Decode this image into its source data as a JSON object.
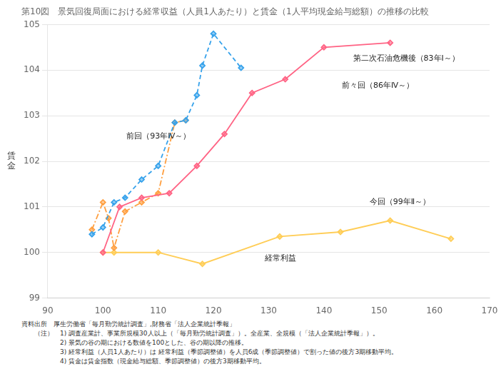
{
  "chart_data": {
    "type": "line",
    "title": "第10図　景気回復局面における経常収益（人員1人あたり）と賃金（1人平均現金給与総額）の推移の比較",
    "y_label": "賃\n金",
    "xlim": [
      90,
      170
    ],
    "ylim": [
      99,
      105
    ],
    "xticks": [
      90,
      100,
      110,
      120,
      130,
      140,
      150,
      160,
      170
    ],
    "yticks": [
      99,
      100,
      101,
      102,
      103,
      104,
      105
    ],
    "grid": "y",
    "series": [
      {
        "name": "第二次石油危機後（83年Ⅰ～）",
        "line_style": "dashed",
        "marker": "diamond",
        "x": [
          98,
          100,
          102,
          104,
          107,
          110,
          113,
          115,
          117,
          118,
          120,
          125
        ],
        "values": [
          100.4,
          100.55,
          101.1,
          101.2,
          101.6,
          101.9,
          102.85,
          102.9,
          103.45,
          104.1,
          104.8,
          104.05
        ]
      },
      {
        "name": "前々回（86年Ⅳ～）",
        "line_style": "solid",
        "marker": "diamond",
        "x": [
          100,
          103,
          107,
          112,
          117,
          122,
          127,
          133,
          140,
          152
        ],
        "values": [
          100.0,
          101.0,
          101.2,
          101.3,
          101.9,
          102.6,
          103.5,
          103.8,
          104.5,
          104.6
        ]
      },
      {
        "name": "前回（93年Ⅳ～）",
        "line_style": "dashdot",
        "marker": "diamond",
        "x": [
          98,
          100,
          101,
          102,
          104,
          107,
          110,
          113,
          115
        ],
        "values": [
          100.5,
          101.1,
          100.75,
          100.1,
          100.9,
          101.1,
          101.3,
          102.85,
          102.9
        ]
      },
      {
        "name": "今回（99年Ⅱ～）",
        "line_style": "solid",
        "marker": "diamond",
        "x": [
          100,
          102,
          110,
          118,
          132,
          143,
          152,
          163
        ],
        "values": [
          100.0,
          100.0,
          100.0,
          99.75,
          100.35,
          100.45,
          100.7,
          100.3
        ]
      }
    ],
    "annotations": [
      {
        "text": "第二次石油危機後（83年Ⅰ～）",
        "x": 145,
        "y": 104.25
      },
      {
        "text": "前々回（86年Ⅳ～）",
        "x": 143,
        "y": 103.65
      },
      {
        "text": "前回（93年Ⅳ～）",
        "x": 104,
        "y": 102.55
      },
      {
        "text": "今回（99年Ⅱ～）",
        "x": 148,
        "y": 101.1
      },
      {
        "text": "経常利益",
        "x": 129,
        "y": 99.87
      }
    ],
    "notes": [
      "資料出所　厚生労働省「毎月勤労統計調査」,財務省「法人企業統計季報」",
      "　　（注）　1) 調査産業計、事業所規模30人以上（「毎月勤労統計調査」）。全産業、全規模（「法人企業統計季報」）。",
      "　　　　　　2) 景気の谷の期における数値を100とした、谷の期以降の推移。",
      "　　　　　　3) 経常利益（人員1人あたり）は 経常利益（季節調整値）を人員6成（季節調整値）で割った値の後方3期移動平均。",
      "　　　　　　4) 賃金は賃金指数（現金給与総額、季節調整値）の後方3期移動平均。"
    ]
  }
}
